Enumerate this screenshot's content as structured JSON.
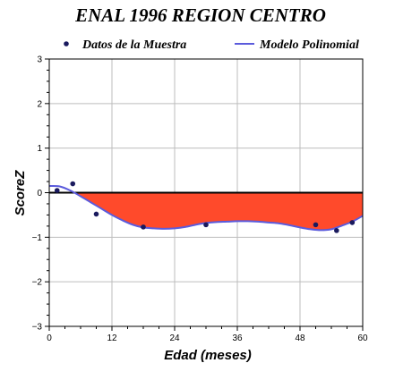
{
  "chart_data": {
    "type": "line",
    "title": "ENAL 1996 REGION CENTRO",
    "xlabel": "Edad (meses)",
    "ylabel": "ScoreZ",
    "xlim": [
      0,
      60
    ],
    "ylim": [
      -3,
      3
    ],
    "x_ticks": [
      0,
      12,
      24,
      36,
      48,
      60
    ],
    "y_ticks": [
      3,
      2,
      1,
      0,
      -1,
      -2,
      -3
    ],
    "x_tick_labels": [
      "0",
      "12",
      "24",
      "36",
      "48",
      "60"
    ],
    "y_tick_labels": [
      "3",
      "2",
      "1",
      "0",
      "−1",
      "−2",
      "−3"
    ],
    "grid": true,
    "legend_position": "top",
    "series": [
      {
        "name": "Datos de la Muestra",
        "type": "scatter",
        "color": "#1a1a5e",
        "x": [
          1.5,
          4.5,
          9,
          18,
          30,
          51,
          55,
          58
        ],
        "y": [
          0.05,
          0.2,
          -0.48,
          -0.77,
          -0.72,
          -0.72,
          -0.85,
          -0.67
        ]
      },
      {
        "name": "Modelo Polinomial",
        "type": "line",
        "color": "#5b5bdc",
        "fill_below_zero_color": "#ff4a2b",
        "x": [
          0,
          2,
          4,
          6,
          8,
          10,
          12,
          14,
          16,
          18,
          20,
          22,
          24,
          26,
          28,
          30,
          32,
          34,
          36,
          38,
          40,
          42,
          44,
          46,
          48,
          50,
          52,
          54,
          56,
          58,
          60
        ],
        "y": [
          0.15,
          0.14,
          0.05,
          -0.08,
          -0.22,
          -0.36,
          -0.5,
          -0.62,
          -0.72,
          -0.78,
          -0.8,
          -0.81,
          -0.8,
          -0.77,
          -0.72,
          -0.68,
          -0.66,
          -0.65,
          -0.64,
          -0.64,
          -0.65,
          -0.67,
          -0.69,
          -0.73,
          -0.78,
          -0.82,
          -0.84,
          -0.82,
          -0.74,
          -0.65,
          -0.52
        ]
      }
    ]
  }
}
